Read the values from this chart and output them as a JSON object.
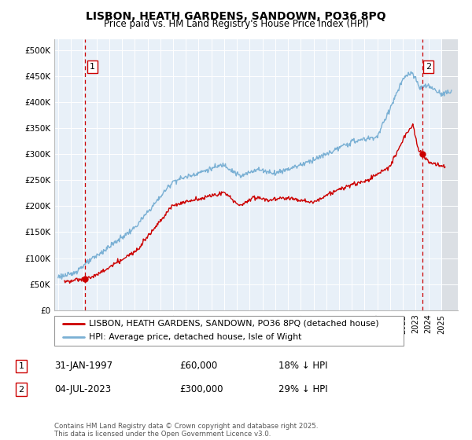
{
  "title": "LISBON, HEATH GARDENS, SANDOWN, PO36 8PQ",
  "subtitle": "Price paid vs. HM Land Registry's House Price Index (HPI)",
  "legend_line1": "LISBON, HEATH GARDENS, SANDOWN, PO36 8PQ (detached house)",
  "legend_line2": "HPI: Average price, detached house, Isle of Wight",
  "annotation1_label": "1",
  "annotation1_date": "31-JAN-1997",
  "annotation1_price": "£60,000",
  "annotation1_hpi": "18% ↓ HPI",
  "annotation2_label": "2",
  "annotation2_date": "04-JUL-2023",
  "annotation2_price": "£300,000",
  "annotation2_hpi": "29% ↓ HPI",
  "footer": "Contains HM Land Registry data © Crown copyright and database right 2025.\nThis data is licensed under the Open Government Licence v3.0.",
  "hpi_color": "#7ab0d4",
  "price_color": "#cc0000",
  "annotation_color": "#cc0000",
  "plot_bg": "#e8f0f8",
  "ylim": [
    0,
    520000
  ],
  "xlim_start": 1994.7,
  "xlim_end": 2026.3,
  "marker1_x": 1997.08,
  "marker1_y": 60000,
  "marker2_x": 2023.5,
  "marker2_y": 300000,
  "vline1_x": 1997.08,
  "vline2_x": 2023.5,
  "hatch_start": 2025.0
}
